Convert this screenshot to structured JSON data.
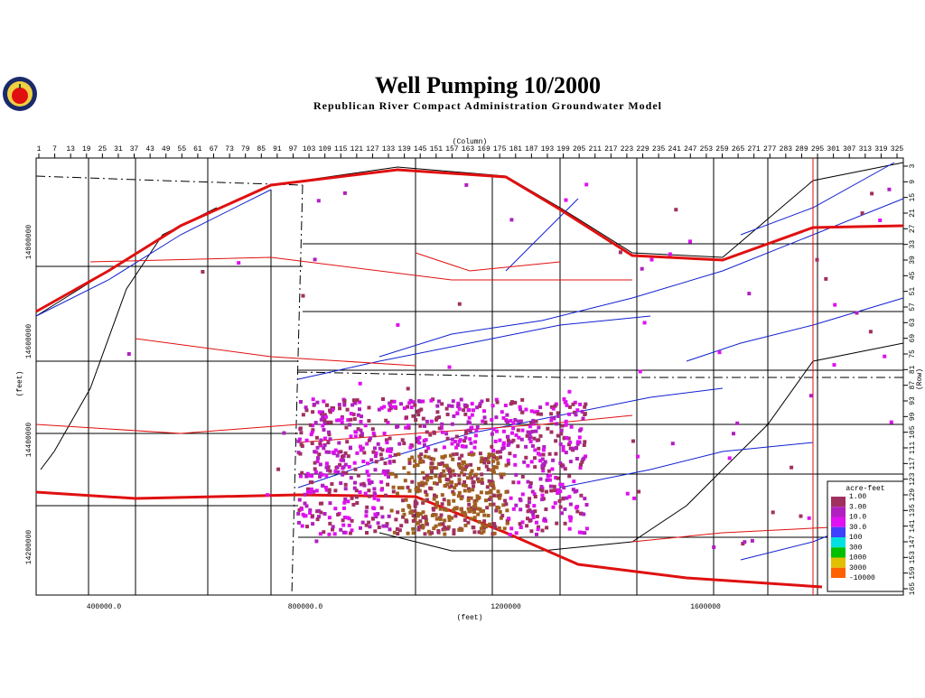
{
  "header": {
    "title": "Well Pumping 10/2000",
    "subtitle": "Republican River Compact Administration Groundwater Model"
  },
  "top_axis": {
    "label": "(Column)",
    "ticks": [
      1,
      7,
      13,
      19,
      25,
      31,
      37,
      43,
      49,
      55,
      61,
      67,
      73,
      79,
      85,
      91,
      97,
      103,
      109,
      115,
      121,
      127,
      133,
      139,
      145,
      151,
      157,
      163,
      169,
      175,
      181,
      187,
      193,
      199,
      205,
      211,
      217,
      223,
      229,
      235,
      241,
      247,
      253,
      259,
      265,
      271,
      277,
      283,
      289,
      295,
      301,
      307,
      313,
      319,
      325
    ]
  },
  "right_axis": {
    "label": "(Row)",
    "ticks": [
      3,
      9,
      15,
      21,
      27,
      33,
      39,
      45,
      51,
      57,
      63,
      69,
      75,
      81,
      87,
      93,
      99,
      105,
      111,
      117,
      123,
      129,
      135,
      141,
      147,
      153,
      159,
      165
    ]
  },
  "left_axis": {
    "label": "(feet)",
    "ticks": [
      "14800000",
      "14600000",
      "14400000",
      "14200000"
    ]
  },
  "bottom_axis": {
    "label": "(feet)",
    "ticks": [
      "400000.0",
      "800000.0",
      "1200000",
      "1600000"
    ]
  },
  "legend": {
    "title": "acre-feet",
    "entries": [
      {
        "label": "1.00",
        "color": "#a03060"
      },
      {
        "label": "3.00",
        "color": "#b020c0"
      },
      {
        "label": "10.0",
        "color": "#e010f0"
      },
      {
        "label": "30.0",
        "color": "#4040ff"
      },
      {
        "label": "100",
        "color": "#00e0e0"
      },
      {
        "label": "300",
        "color": "#00c000"
      },
      {
        "label": "1000",
        "color": "#e0c000"
      },
      {
        "label": "3000",
        "color": "#ff6000"
      },
      {
        "label": "-10000",
        "color": "#ffffff"
      }
    ]
  }
}
